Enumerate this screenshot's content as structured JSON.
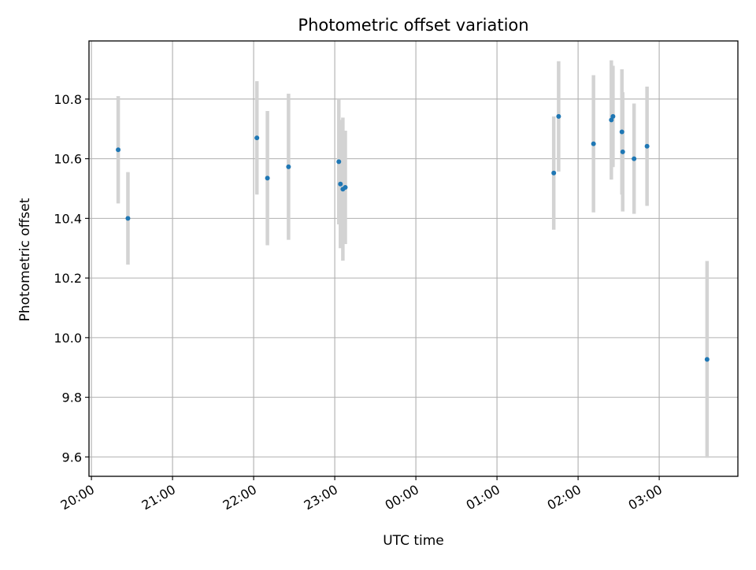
{
  "chart_data": {
    "type": "scatter",
    "title": "Photometric offset variation",
    "xlabel": "UTC time",
    "ylabel": "Photometric offset",
    "x_ticks": [
      "20:00",
      "21:00",
      "22:00",
      "23:00",
      "00:00",
      "01:00",
      "02:00",
      "03:00"
    ],
    "x_tick_hours": [
      20,
      21,
      22,
      23,
      24,
      25,
      26,
      27
    ],
    "y_ticks": [
      "9.6",
      "9.8",
      "10.0",
      "10.2",
      "10.4",
      "10.6",
      "10.8"
    ],
    "y_tick_values": [
      9.6,
      9.8,
      10.0,
      10.2,
      10.4,
      10.6,
      10.8
    ],
    "xlim": [
      "19:58",
      "27:58"
    ],
    "xlim_hours": [
      19.97,
      27.97
    ],
    "ylim": [
      9.535,
      10.995
    ],
    "grid": true,
    "point_color": "#1f77b4",
    "errorbar_color": "#d3d3d3",
    "series": [
      {
        "points": [
          {
            "time": "20:20",
            "x": 20.33,
            "y": 10.63,
            "yerr": 0.18
          },
          {
            "time": "20:27",
            "x": 20.45,
            "y": 10.4,
            "yerr": 0.155
          },
          {
            "time": "22:02",
            "x": 22.04,
            "y": 10.67,
            "yerr": 0.19
          },
          {
            "time": "22:10",
            "x": 22.17,
            "y": 10.535,
            "yerr": 0.225
          },
          {
            "time": "22:26",
            "x": 22.43,
            "y": 10.573,
            "yerr": 0.245
          },
          {
            "time": "23:03",
            "x": 23.05,
            "y": 10.59,
            "yerr": 0.21
          },
          {
            "time": "23:04",
            "x": 23.07,
            "y": 10.515,
            "yerr": 0.215
          },
          {
            "time": "23:06",
            "x": 23.1,
            "y": 10.498,
            "yerr": 0.24
          },
          {
            "time": "23:08",
            "x": 23.13,
            "y": 10.504,
            "yerr": 0.19
          },
          {
            "time": "01:42",
            "x": 25.7,
            "y": 10.552,
            "yerr": 0.19
          },
          {
            "time": "01:46",
            "x": 25.76,
            "y": 10.742,
            "yerr": 0.185
          },
          {
            "time": "02:12",
            "x": 26.19,
            "y": 10.65,
            "yerr": 0.23
          },
          {
            "time": "02:25",
            "x": 26.41,
            "y": 10.73,
            "yerr": 0.2
          },
          {
            "time": "02:26",
            "x": 26.43,
            "y": 10.742,
            "yerr": 0.17
          },
          {
            "time": "02:32",
            "x": 26.54,
            "y": 10.69,
            "yerr": 0.21
          },
          {
            "time": "02:33",
            "x": 26.55,
            "y": 10.623,
            "yerr": 0.2
          },
          {
            "time": "02:41",
            "x": 26.69,
            "y": 10.6,
            "yerr": 0.185
          },
          {
            "time": "02:51",
            "x": 26.85,
            "y": 10.642,
            "yerr": 0.2
          },
          {
            "time": "03:35",
            "x": 27.59,
            "y": 9.927,
            "yerr": 0.33
          }
        ]
      }
    ]
  }
}
